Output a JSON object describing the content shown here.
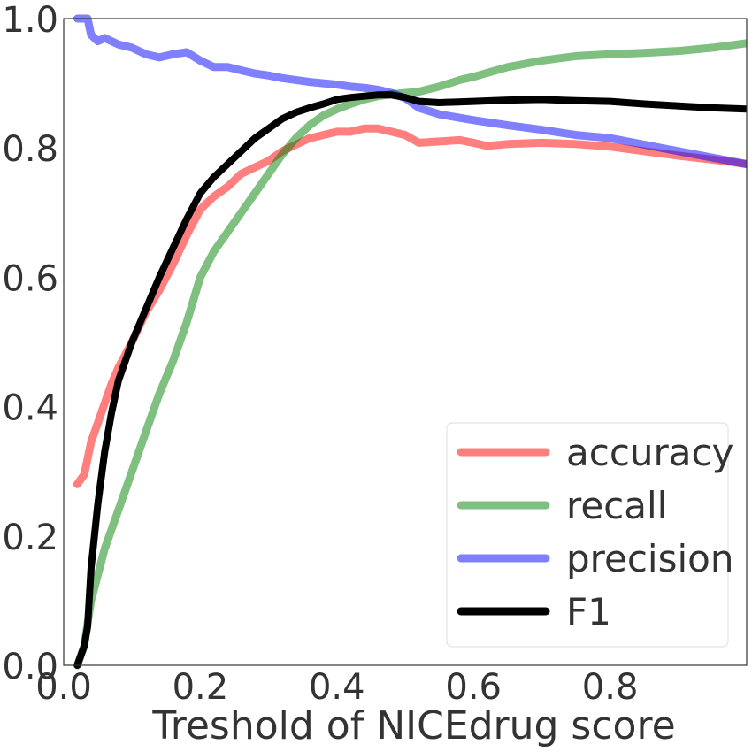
{
  "chart_data": {
    "type": "line",
    "title": "",
    "xlabel": "Treshold of NICEdrug score",
    "ylabel": "",
    "xlim": [
      0,
      1.0
    ],
    "ylim": [
      0,
      1.0
    ],
    "xticks": [
      "0.0",
      "0.2",
      "0.4",
      "0.6",
      "0.8"
    ],
    "xtick_values": [
      0.0,
      0.2,
      0.4,
      0.6,
      0.8
    ],
    "yticks": [
      "0.0",
      "0.2",
      "0.4",
      "0.6",
      "0.8",
      "1.0"
    ],
    "ytick_values": [
      0.0,
      0.2,
      0.4,
      0.6,
      0.8,
      1.0
    ],
    "grid": false,
    "legend_position": "bottom-right",
    "series": [
      {
        "name": "accuracy",
        "color": "#ff0000",
        "opacity": 0.5,
        "x": [
          0.02,
          0.03,
          0.04,
          0.05,
          0.06,
          0.07,
          0.08,
          0.1,
          0.12,
          0.14,
          0.16,
          0.18,
          0.2,
          0.22,
          0.24,
          0.26,
          0.28,
          0.3,
          0.32,
          0.34,
          0.36,
          0.38,
          0.4,
          0.42,
          0.44,
          0.46,
          0.48,
          0.5,
          0.52,
          0.55,
          0.58,
          0.6,
          0.62,
          0.65,
          0.7,
          0.75,
          0.8,
          0.85,
          0.9,
          0.95,
          1.0
        ],
        "y": [
          0.28,
          0.295,
          0.345,
          0.375,
          0.405,
          0.435,
          0.46,
          0.5,
          0.545,
          0.58,
          0.62,
          0.665,
          0.705,
          0.725,
          0.74,
          0.76,
          0.77,
          0.78,
          0.795,
          0.805,
          0.815,
          0.82,
          0.825,
          0.825,
          0.83,
          0.83,
          0.825,
          0.82,
          0.808,
          0.81,
          0.812,
          0.808,
          0.803,
          0.806,
          0.808,
          0.806,
          0.802,
          0.795,
          0.788,
          0.782,
          0.775
        ]
      },
      {
        "name": "recall",
        "color": "#008000",
        "opacity": 0.5,
        "x": [
          0.02,
          0.03,
          0.04,
          0.05,
          0.06,
          0.08,
          0.1,
          0.12,
          0.14,
          0.16,
          0.18,
          0.2,
          0.22,
          0.24,
          0.26,
          0.28,
          0.3,
          0.32,
          0.34,
          0.36,
          0.38,
          0.4,
          0.42,
          0.44,
          0.46,
          0.48,
          0.5,
          0.52,
          0.55,
          0.58,
          0.6,
          0.65,
          0.7,
          0.75,
          0.8,
          0.85,
          0.9,
          0.95,
          1.0
        ],
        "y": [
          0.0,
          0.03,
          0.1,
          0.14,
          0.18,
          0.24,
          0.3,
          0.36,
          0.42,
          0.47,
          0.53,
          0.6,
          0.64,
          0.67,
          0.7,
          0.73,
          0.76,
          0.79,
          0.815,
          0.835,
          0.85,
          0.86,
          0.868,
          0.875,
          0.88,
          0.883,
          0.885,
          0.887,
          0.895,
          0.905,
          0.91,
          0.925,
          0.935,
          0.942,
          0.945,
          0.947,
          0.95,
          0.955,
          0.962
        ]
      },
      {
        "name": "precision",
        "color": "#0000ff",
        "opacity": 0.5,
        "x": [
          0.02,
          0.035,
          0.04,
          0.05,
          0.06,
          0.08,
          0.1,
          0.12,
          0.14,
          0.16,
          0.18,
          0.2,
          0.22,
          0.24,
          0.26,
          0.28,
          0.3,
          0.32,
          0.34,
          0.36,
          0.38,
          0.4,
          0.42,
          0.44,
          0.46,
          0.48,
          0.5,
          0.52,
          0.55,
          0.6,
          0.65,
          0.7,
          0.75,
          0.8,
          0.85,
          0.9,
          0.95,
          1.0
        ],
        "y": [
          1.0,
          1.0,
          0.975,
          0.965,
          0.97,
          0.96,
          0.955,
          0.945,
          0.94,
          0.945,
          0.948,
          0.935,
          0.925,
          0.925,
          0.92,
          0.915,
          0.912,
          0.908,
          0.905,
          0.902,
          0.9,
          0.898,
          0.895,
          0.893,
          0.89,
          0.885,
          0.877,
          0.862,
          0.852,
          0.843,
          0.835,
          0.828,
          0.82,
          0.815,
          0.805,
          0.795,
          0.785,
          0.775
        ]
      },
      {
        "name": "F1",
        "color": "#000000",
        "opacity": 1.0,
        "x": [
          0.02,
          0.03,
          0.035,
          0.04,
          0.05,
          0.06,
          0.07,
          0.08,
          0.1,
          0.12,
          0.14,
          0.16,
          0.18,
          0.2,
          0.22,
          0.24,
          0.26,
          0.28,
          0.3,
          0.32,
          0.34,
          0.36,
          0.38,
          0.4,
          0.42,
          0.44,
          0.46,
          0.48,
          0.5,
          0.52,
          0.55,
          0.6,
          0.65,
          0.7,
          0.75,
          0.8,
          0.85,
          0.9,
          0.95,
          1.0
        ],
        "y": [
          0.0,
          0.03,
          0.06,
          0.15,
          0.25,
          0.33,
          0.39,
          0.44,
          0.5,
          0.55,
          0.6,
          0.645,
          0.69,
          0.73,
          0.755,
          0.775,
          0.795,
          0.815,
          0.83,
          0.845,
          0.855,
          0.862,
          0.868,
          0.875,
          0.878,
          0.88,
          0.882,
          0.882,
          0.878,
          0.872,
          0.87,
          0.872,
          0.874,
          0.875,
          0.873,
          0.872,
          0.868,
          0.865,
          0.862,
          0.86
        ]
      }
    ]
  }
}
